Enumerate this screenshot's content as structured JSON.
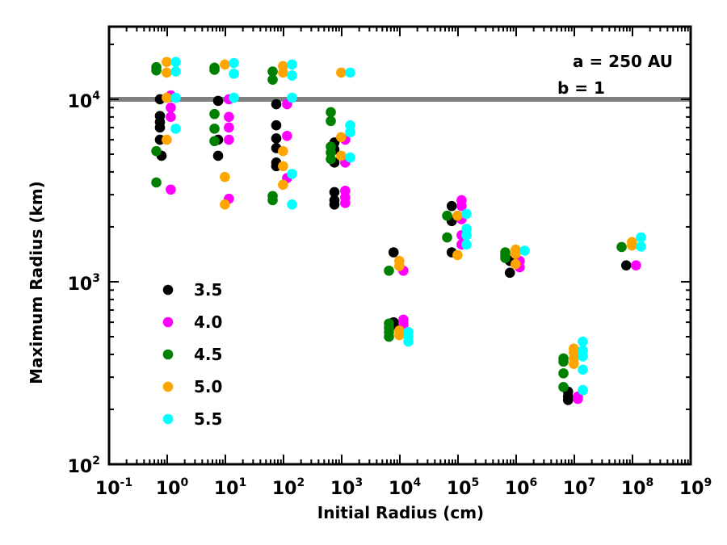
{
  "chart_data": {
    "type": "scatter",
    "xlabel": "Initial Radius (cm)",
    "ylabel": "Maximum Radius (km)",
    "xscale": "log",
    "yscale": "log",
    "xlim": [
      0.1,
      1000000000
    ],
    "ylim": [
      100,
      25000
    ],
    "grid": false,
    "x_ticks": [
      {
        "base": "10",
        "exp": "-1",
        "value": 0.1
      },
      {
        "base": "10",
        "exp": "0",
        "value": 1
      },
      {
        "base": "10",
        "exp": "1",
        "value": 10
      },
      {
        "base": "10",
        "exp": "2",
        "value": 100
      },
      {
        "base": "10",
        "exp": "3",
        "value": 1000
      },
      {
        "base": "10",
        "exp": "4",
        "value": 10000
      },
      {
        "base": "10",
        "exp": "5",
        "value": 100000
      },
      {
        "base": "10",
        "exp": "6",
        "value": 1000000
      },
      {
        "base": "10",
        "exp": "7",
        "value": 10000000
      },
      {
        "base": "10",
        "exp": "8",
        "value": 100000000
      },
      {
        "base": "10",
        "exp": "9",
        "value": 1000000000
      }
    ],
    "y_ticks": [
      {
        "base": "10",
        "exp": "2",
        "value": 100
      },
      {
        "base": "10",
        "exp": "3",
        "value": 1000
      },
      {
        "base": "10",
        "exp": "4",
        "value": 10000
      }
    ],
    "reference_line": {
      "y": 10000,
      "color": "#808080"
    },
    "annotations": [
      "a = 250 AU",
      "b = 1"
    ],
    "legend_position": "lower-left",
    "series": [
      {
        "name": "3.5",
        "color": "#000000",
        "points": [
          [
            0.75,
            10000
          ],
          [
            0.75,
            8100
          ],
          [
            0.75,
            7500
          ],
          [
            0.75,
            7000
          ],
          [
            0.75,
            6000
          ],
          [
            0.8,
            4900
          ],
          [
            7.5,
            9800
          ],
          [
            7.5,
            6000
          ],
          [
            7.5,
            4900
          ],
          [
            75,
            9400
          ],
          [
            75,
            7200
          ],
          [
            75,
            6100
          ],
          [
            75,
            5400
          ],
          [
            75,
            4500
          ],
          [
            75,
            4300
          ],
          [
            750,
            5800
          ],
          [
            750,
            5300
          ],
          [
            750,
            4500
          ],
          [
            750,
            3100
          ],
          [
            750,
            2800
          ],
          [
            750,
            2650
          ],
          [
            7800,
            1450
          ],
          [
            7800,
            600
          ],
          [
            7800,
            580
          ],
          [
            78000,
            2600
          ],
          [
            78000,
            2150
          ],
          [
            78000,
            1450
          ],
          [
            780000,
            1300
          ],
          [
            780000,
            1120
          ],
          [
            7800000,
            250
          ],
          [
            7800000,
            235
          ],
          [
            7800000,
            225
          ],
          [
            78000000,
            1230
          ]
        ]
      },
      {
        "name": "4.0",
        "color": "#ff00ff",
        "points": [
          [
            1.15,
            10500
          ],
          [
            1.15,
            9000
          ],
          [
            1.15,
            8000
          ],
          [
            1.15,
            3200
          ],
          [
            11.5,
            10000
          ],
          [
            11.5,
            8000
          ],
          [
            11.5,
            7000
          ],
          [
            11.5,
            6000
          ],
          [
            11.5,
            2850
          ],
          [
            115,
            9400
          ],
          [
            115,
            6300
          ],
          [
            115,
            3700
          ],
          [
            1150,
            6000
          ],
          [
            1150,
            4500
          ],
          [
            1150,
            3150
          ],
          [
            1150,
            2900
          ],
          [
            1150,
            2700
          ],
          [
            11500,
            1150
          ],
          [
            11500,
            620
          ],
          [
            11500,
            590
          ],
          [
            11500,
            560
          ],
          [
            115000,
            2800
          ],
          [
            115000,
            2600
          ],
          [
            115000,
            2200
          ],
          [
            115000,
            1800
          ],
          [
            115000,
            1600
          ],
          [
            1150000,
            1300
          ],
          [
            1150000,
            1200
          ],
          [
            11500000,
            235
          ],
          [
            11500000,
            228
          ],
          [
            115000000,
            1230
          ]
        ]
      },
      {
        "name": "4.5",
        "color": "#008000",
        "points": [
          [
            0.65,
            15000
          ],
          [
            0.65,
            14400
          ],
          [
            0.65,
            5200
          ],
          [
            0.65,
            3500
          ],
          [
            6.5,
            14900
          ],
          [
            6.5,
            14500
          ],
          [
            6.5,
            8300
          ],
          [
            6.5,
            6900
          ],
          [
            6.5,
            5900
          ],
          [
            65,
            14200
          ],
          [
            65,
            12800
          ],
          [
            65,
            2950
          ],
          [
            65,
            2800
          ],
          [
            650,
            8500
          ],
          [
            650,
            7600
          ],
          [
            650,
            5500
          ],
          [
            650,
            5100
          ],
          [
            650,
            4700
          ],
          [
            6500,
            1150
          ],
          [
            6500,
            590
          ],
          [
            6500,
            560
          ],
          [
            6500,
            530
          ],
          [
            6500,
            500
          ],
          [
            65000,
            2300
          ],
          [
            65000,
            1750
          ],
          [
            650000,
            1450
          ],
          [
            650000,
            1400
          ],
          [
            650000,
            1350
          ],
          [
            6500000,
            380
          ],
          [
            6500000,
            365
          ],
          [
            6500000,
            315
          ],
          [
            6500000,
            265
          ],
          [
            65000000,
            1550
          ]
        ]
      },
      {
        "name": "5.0",
        "color": "#ffa500",
        "points": [
          [
            0.98,
            16000
          ],
          [
            0.98,
            14000
          ],
          [
            0.98,
            10200
          ],
          [
            0.98,
            6000
          ],
          [
            9.8,
            15500
          ],
          [
            9.8,
            3750
          ],
          [
            9.8,
            2650
          ],
          [
            98,
            15200
          ],
          [
            98,
            14000
          ],
          [
            98,
            5200
          ],
          [
            98,
            4300
          ],
          [
            98,
            3400
          ],
          [
            980,
            14000
          ],
          [
            980,
            6200
          ],
          [
            980,
            4900
          ],
          [
            9800,
            1300
          ],
          [
            9800,
            1220
          ],
          [
            9800,
            540
          ],
          [
            9800,
            510
          ],
          [
            98000,
            2300
          ],
          [
            98000,
            1400
          ],
          [
            980000,
            1500
          ],
          [
            980000,
            1420
          ],
          [
            980000,
            1250
          ],
          [
            9800000,
            430
          ],
          [
            9800000,
            410
          ],
          [
            9800000,
            380
          ],
          [
            9800000,
            355
          ],
          [
            98000000,
            1650
          ],
          [
            98000000,
            1580
          ]
        ]
      },
      {
        "name": "5.5",
        "color": "#00ffff",
        "points": [
          [
            1.4,
            16000
          ],
          [
            1.4,
            14200
          ],
          [
            1.4,
            10200
          ],
          [
            1.4,
            6900
          ],
          [
            14,
            15800
          ],
          [
            14,
            13800
          ],
          [
            14,
            10200
          ],
          [
            140,
            15500
          ],
          [
            140,
            13500
          ],
          [
            140,
            10200
          ],
          [
            140,
            3900
          ],
          [
            140,
            2650
          ],
          [
            1400,
            14000
          ],
          [
            1400,
            7200
          ],
          [
            1400,
            6600
          ],
          [
            1400,
            4800
          ],
          [
            14000,
            530
          ],
          [
            14000,
            500
          ],
          [
            14000,
            470
          ],
          [
            140000,
            2350
          ],
          [
            140000,
            1950
          ],
          [
            140000,
            1800
          ],
          [
            140000,
            1600
          ],
          [
            1400000,
            1480
          ],
          [
            14000000,
            470
          ],
          [
            14000000,
            420
          ],
          [
            14000000,
            390
          ],
          [
            14000000,
            330
          ],
          [
            14000000,
            255
          ],
          [
            140000000,
            1750
          ],
          [
            140000000,
            1560
          ]
        ]
      }
    ]
  }
}
